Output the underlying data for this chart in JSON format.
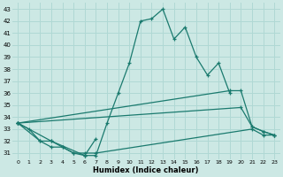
{
  "xlabel": "Humidex (Indice chaleur)",
  "bg_color": "#cce8e4",
  "grid_color": "#b0d8d4",
  "line_color": "#1a7a6e",
  "xlim": [
    -0.5,
    23.5
  ],
  "ylim": [
    30.5,
    43.5
  ],
  "xticks": [
    0,
    1,
    2,
    3,
    4,
    5,
    6,
    7,
    8,
    9,
    10,
    11,
    12,
    13,
    14,
    15,
    16,
    17,
    18,
    19,
    20,
    21,
    22,
    23
  ],
  "yticks": [
    31,
    32,
    33,
    34,
    35,
    36,
    37,
    38,
    39,
    40,
    41,
    42,
    43
  ],
  "series": [
    {
      "x": [
        0,
        1,
        2,
        3,
        4,
        5,
        6,
        7
      ],
      "y": [
        33.5,
        33.0,
        32.0,
        32.0,
        31.5,
        31.0,
        30.8,
        32.2
      ]
    },
    {
      "x": [
        0,
        2,
        3,
        4,
        5,
        6,
        7,
        21,
        22,
        23
      ],
      "y": [
        33.5,
        32.0,
        31.5,
        31.5,
        31.0,
        31.0,
        31.0,
        33.0,
        32.5,
        32.5
      ]
    },
    {
      "x": [
        0,
        19,
        20,
        21,
        22,
        23
      ],
      "y": [
        33.5,
        36.2,
        36.2,
        33.2,
        32.8,
        32.5
      ]
    },
    {
      "x": [
        0,
        20,
        21,
        22,
        23
      ],
      "y": [
        33.5,
        34.8,
        33.2,
        32.8,
        32.5
      ]
    },
    {
      "x": [
        0,
        3,
        6,
        7,
        8,
        9,
        10,
        11,
        12,
        13,
        14,
        15,
        16,
        17,
        18,
        19
      ],
      "y": [
        33.5,
        32.0,
        30.8,
        30.8,
        33.5,
        36.0,
        38.5,
        42.0,
        42.2,
        43.0,
        40.5,
        41.5,
        39.0,
        37.5,
        38.5,
        36.0
      ]
    }
  ]
}
